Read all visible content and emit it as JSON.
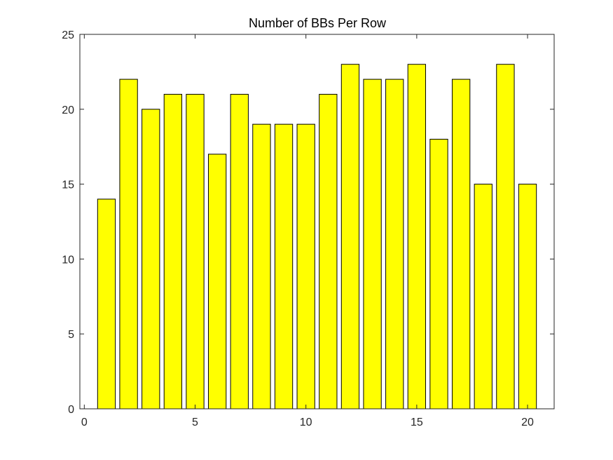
{
  "chart_data": {
    "type": "bar",
    "title": "Number of BBs Per Row",
    "xlabel": "",
    "ylabel": "",
    "x": [
      1,
      2,
      3,
      4,
      5,
      6,
      7,
      8,
      9,
      10,
      11,
      12,
      13,
      14,
      15,
      16,
      17,
      18,
      19,
      20
    ],
    "values": [
      14,
      22,
      20,
      21,
      21,
      17,
      21,
      19,
      19,
      19,
      21,
      23,
      22,
      22,
      23,
      18,
      22,
      15,
      23,
      15
    ],
    "xlim": [
      -0.2,
      21.2
    ],
    "ylim": [
      0,
      25
    ],
    "xticks": [
      0,
      5,
      10,
      15,
      20
    ],
    "yticks": [
      0,
      5,
      10,
      15,
      20,
      25
    ],
    "grid": false,
    "legend": "none",
    "bar_color": "#ffff00",
    "bar_edge_color": "#000000"
  }
}
